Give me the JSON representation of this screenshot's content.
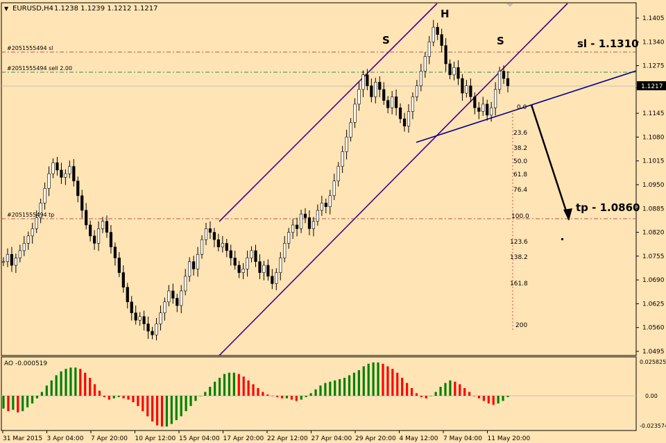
{
  "header": {
    "menu_glyph": "▼",
    "symbol": "EURUSD,H4",
    "ohlc": "1.1238 1.1239 1.1212 1.1217"
  },
  "order_lines": {
    "sl_label": "#2051555494 sl",
    "sell_label": "#2051555494 sell 2.00",
    "tp_label": "#2051555494 tp"
  },
  "annotations": {
    "left_shoulder": "S",
    "head": "H",
    "right_shoulder": "S",
    "sl": "sl - 1.1310",
    "tp": "tp - 1.0860"
  },
  "fibonacci": [
    "0.0",
    "23.6",
    "38.2",
    "50.0",
    "61.8",
    "76.4",
    "100.0",
    "123.6",
    "138.2",
    "161.8",
    "200"
  ],
  "price_axis": {
    "ticks": [
      "1.1405",
      "1.1340",
      "1.1275",
      "1.1215",
      "1.1145",
      "1.1080",
      "1.1015",
      "1.0950",
      "1.0885",
      "1.0820",
      "1.0755",
      "1.0690",
      "1.0625",
      "1.0560",
      "1.0495"
    ],
    "current_price": "1.1217"
  },
  "indicator": {
    "label": "AO -0.000519",
    "axis": [
      "0.025825",
      "0.00",
      "-0.023574"
    ]
  },
  "time_axis": [
    "31 Mar 2015",
    "3 Apr 04:00",
    "7 Apr 20:00",
    "10 Apr 12:00",
    "15 Apr 04:00",
    "17 Apr 20:00",
    "22 Apr 12:00",
    "27 Apr 04:00",
    "29 Apr 20:00",
    "4 May 12:00",
    "7 May 04:00",
    "11 May 20:00"
  ],
  "colors": {
    "background": "#FFE4B5",
    "candles": "#000000",
    "channel": "#4B0082",
    "order_line": "#C0504D",
    "sell_line": "#2E8B57",
    "ao_up": "#008000",
    "ao_down": "#FF0000"
  },
  "chart_data": {
    "type": "candlestick",
    "symbol": "EURUSD",
    "timeframe": "H4",
    "ylim": [
      1.0495,
      1.1405
    ],
    "levels": {
      "sl": 1.131,
      "tp": 1.086,
      "current": 1.1217
    },
    "close_path": [
      1.074,
      1.076,
      1.073,
      1.075,
      1.077,
      1.079,
      1.081,
      1.083,
      1.086,
      1.09,
      1.094,
      1.098,
      1.101,
      1.099,
      1.097,
      1.098,
      1.1,
      1.096,
      1.092,
      1.088,
      1.084,
      1.081,
      1.079,
      1.083,
      1.085,
      1.082,
      1.078,
      1.075,
      1.071,
      1.067,
      1.063,
      1.06,
      1.058,
      1.059,
      1.057,
      1.055,
      1.054,
      1.057,
      1.06,
      1.063,
      1.066,
      1.064,
      1.062,
      1.066,
      1.07,
      1.074,
      1.072,
      1.076,
      1.08,
      1.083,
      1.082,
      1.08,
      1.078,
      1.079,
      1.077,
      1.075,
      1.073,
      1.071,
      1.072,
      1.075,
      1.077,
      1.074,
      1.071,
      1.073,
      1.07,
      1.068,
      1.071,
      1.075,
      1.079,
      1.082,
      1.084,
      1.083,
      1.087,
      1.086,
      1.083,
      1.085,
      1.088,
      1.09,
      1.089,
      1.092,
      1.096,
      1.1,
      1.104,
      1.108,
      1.112,
      1.117,
      1.121,
      1.125,
      1.122,
      1.119,
      1.123,
      1.121,
      1.118,
      1.116,
      1.119,
      1.116,
      1.113,
      1.111,
      1.115,
      1.119,
      1.122,
      1.126,
      1.13,
      1.134,
      1.138,
      1.136,
      1.133,
      1.128,
      1.125,
      1.127,
      1.124,
      1.12,
      1.122,
      1.119,
      1.116,
      1.115,
      1.117,
      1.114,
      1.116,
      1.121,
      1.126,
      1.124,
      1.122
    ],
    "ao_values": [
      -0.01,
      -0.012,
      -0.011,
      -0.013,
      -0.012,
      -0.009,
      -0.006,
      -0.002,
      0.003,
      0.008,
      0.012,
      0.016,
      0.019,
      0.021,
      0.022,
      0.022,
      0.021,
      0.018,
      0.014,
      0.009,
      0.004,
      -0.001,
      -0.003,
      -0.002,
      -0.001,
      -0.002,
      -0.003,
      -0.005,
      -0.008,
      -0.012,
      -0.016,
      -0.02,
      -0.023,
      -0.024,
      -0.024,
      -0.022,
      -0.019,
      -0.016,
      -0.012,
      -0.008,
      -0.004,
      0.0,
      0.003,
      0.007,
      0.011,
      0.014,
      0.017,
      0.018,
      0.018,
      0.017,
      0.015,
      0.012,
      0.009,
      0.006,
      0.003,
      0.001,
      0.0,
      -0.001,
      -0.002,
      -0.002,
      -0.003,
      -0.004,
      -0.003,
      -0.001,
      0.002,
      0.005,
      0.008,
      0.01,
      0.011,
      0.012,
      0.013,
      0.014,
      0.016,
      0.018,
      0.02,
      0.023,
      0.025,
      0.026,
      0.026,
      0.025,
      0.023,
      0.021,
      0.018,
      0.014,
      0.01,
      0.006,
      0.002,
      -0.001,
      -0.002,
      0.0,
      0.003,
      0.007,
      0.01,
      0.012,
      0.011,
      0.009,
      0.006,
      0.003,
      0.0,
      -0.002,
      -0.004,
      -0.006,
      -0.007,
      -0.006,
      -0.004,
      -0.001
    ]
  }
}
